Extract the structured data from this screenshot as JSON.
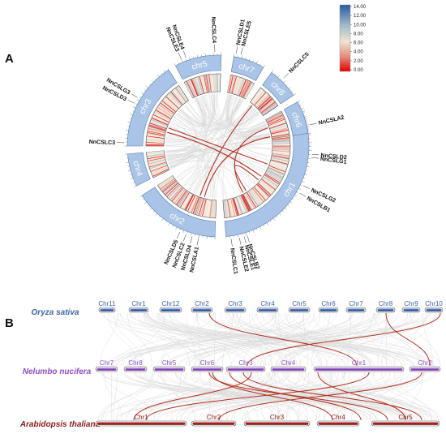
{
  "panel_a": {
    "letter": "A",
    "chromosomes": [
      {
        "name": "chr1"
      },
      {
        "name": "chr2"
      },
      {
        "name": "chr3"
      },
      {
        "name": "chr4"
      },
      {
        "name": "chr5"
      },
      {
        "name": "chr6"
      },
      {
        "name": "chr7"
      },
      {
        "name": "chr8"
      }
    ],
    "genes": [
      "NnCSLC4",
      "NnCSLD1",
      "NnCSLE5",
      "NnCSLE4",
      "NnCSLE3",
      "NnCSLC5",
      "NnCSLG3",
      "NnCSLD3",
      "NnCSLA2",
      "NnCSLC3",
      "NnCSLD2",
      "NnCSLG1",
      "NnCSLG2",
      "NnCSLB1",
      "NnCSLB2",
      "NnCSLE1",
      "NnCSLE2",
      "NnCSLC1",
      "NnCSLA1",
      "NnCSLD4",
      "NnCSLC2",
      "NnCSLD5"
    ],
    "legend": {
      "ticks": [
        "14.00",
        "12.00",
        "10.00",
        "8.00",
        "6.00",
        "4.00",
        "2.00",
        "0.00"
      ],
      "colors": [
        "#2b5c9e",
        "#9fb7cc",
        "#efe4d2",
        "#e58b7c",
        "#e00000"
      ]
    }
  },
  "panel_b": {
    "letter": "B",
    "species": [
      {
        "name": "Oryza sativa",
        "color": "#3d63a8",
        "chromosomes": [
          "Chr11",
          "Chr1",
          "Chr12",
          "Chr2",
          "Chr3",
          "Chr4",
          "Chr5",
          "Chr6",
          "Chr7",
          "Chr8",
          "Chr9",
          "Chr10"
        ]
      },
      {
        "name": "Nelumbo nucifera",
        "color": "#8e4fc4",
        "chromosomes": [
          "Chr7",
          "Chr8",
          "Chr5",
          "Chr6",
          "Chr3",
          "Chr4",
          "Chr1",
          "Chr2"
        ]
      },
      {
        "name": "Arabidopsis thaliana",
        "color": "#8b1a1a",
        "chromosomes": [
          "Chr1",
          "Chr2",
          "Chr3",
          "Chr4",
          "Chr5"
        ]
      }
    ],
    "colors": {
      "syntenic_link": "#dcdcdc",
      "highlight_link": "#b03020"
    }
  }
}
